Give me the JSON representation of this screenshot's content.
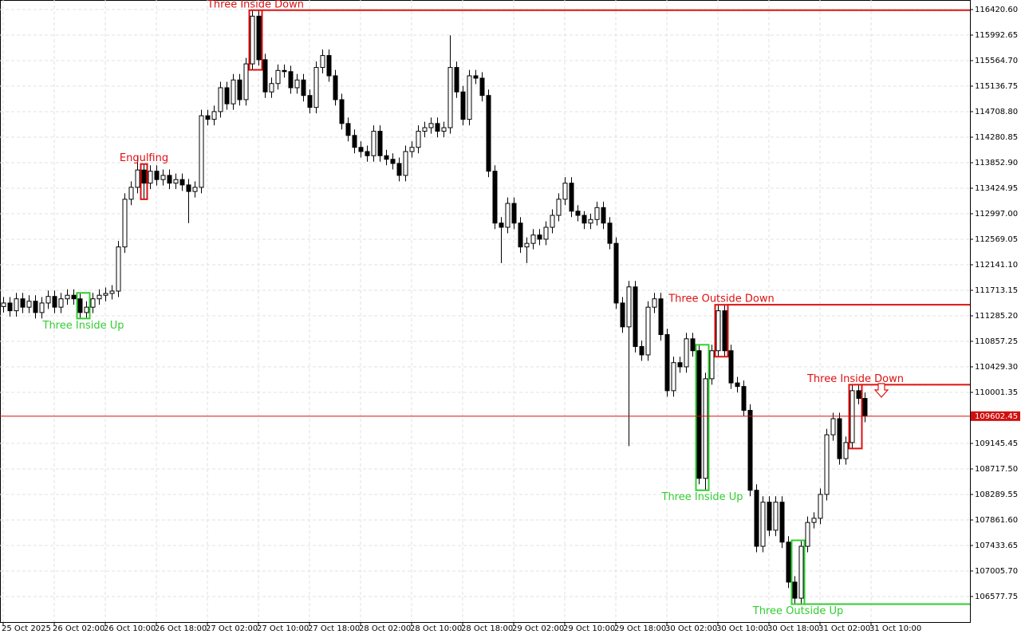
{
  "chart_data": {
    "type": "candlestick",
    "grid": true,
    "up_color": "#ffffff",
    "down_color": "#000000",
    "ylim": [
      106149.8,
      116581.1
    ],
    "xlim": [
      -0.5,
      151.5
    ],
    "yticks": [
      {
        "value": 116420.6,
        "label": "116420.60"
      },
      115992.65,
      {
        "value": 115564.7,
        "label": "115564.70"
      },
      115136.75,
      {
        "value": 114708.8,
        "label": "114708.80"
      },
      114280.85,
      {
        "value": 113852.9,
        "label": "113852.90"
      },
      113424.95,
      {
        "value": 112997.0,
        "label": "112997.00"
      },
      112569.05,
      {
        "value": 112141.1,
        "label": "112141.10"
      },
      111713.15,
      {
        "value": 111285.2,
        "label": "111285.20"
      },
      110857.25,
      {
        "value": 110429.3,
        "label": "110429.30"
      },
      110001.35,
      109145.45,
      {
        "value": 108717.5,
        "label": "108717.50"
      },
      108289.55,
      {
        "value": 107861.6,
        "label": "107861.60"
      },
      107433.65,
      {
        "value": 107005.7,
        "label": "107005.70"
      },
      106577.75
    ],
    "xticks": [
      {
        "value": 0,
        "label": "25 Oct 2025"
      },
      {
        "value": 8,
        "label": "26 Oct 02:00"
      },
      {
        "value": 16,
        "label": "26 Oct 10:00"
      },
      {
        "value": 24,
        "label": "26 Oct 18:00"
      },
      {
        "value": 32,
        "label": "27 Oct 02:00"
      },
      {
        "value": 40,
        "label": "27 Oct 10:00"
      },
      {
        "value": 48,
        "label": "27 Oct 18:00"
      },
      {
        "value": 56,
        "label": "28 Oct 02:00"
      },
      {
        "value": 64,
        "label": "28 Oct 10:00"
      },
      {
        "value": 72,
        "label": "28 Oct 18:00"
      },
      {
        "value": 80,
        "label": "29 Oct 02:00"
      },
      {
        "value": 88,
        "label": "29 Oct 10:00"
      },
      {
        "value": 96,
        "label": "29 Oct 18:00"
      },
      {
        "value": 104,
        "label": "30 Oct 02:00"
      },
      {
        "value": 112,
        "label": "30 Oct 10:00"
      },
      {
        "value": 120,
        "label": "30 Oct 18:00"
      },
      {
        "value": 128,
        "label": "31 Oct 02:00"
      },
      {
        "value": 136,
        "label": "31 Oct 10:00"
      }
    ],
    "current_price": 109602.45,
    "current_price_color": "#d01010",
    "open": [
      111440,
      111500,
      111370,
      111570,
      111430,
      111530,
      111340,
      111500,
      111610,
      111430,
      111570,
      111630,
      111570,
      111340,
      111430,
      111570,
      111630,
      111660,
      111700,
      112440,
      113240,
      113440,
      113730,
      113510,
      113710,
      113570,
      113640,
      113510,
      113570,
      113480,
      113370,
      113440,
      114640,
      114580,
      114710,
      115110,
      114840,
      115240,
      114910,
      115510,
      116310,
      115580,
      115040,
      115180,
      115400,
      115380,
      115110,
      115240,
      114980,
      114780,
      115450,
      115650,
      115310,
      114910,
      114510,
      114310,
      114110,
      114040,
      113970,
      114380,
      113970,
      113910,
      113840,
      113640,
      114040,
      114110,
      114380,
      114440,
      114510,
      114380,
      114440,
      115450,
      115040,
      114580,
      115310,
      115270,
      114980,
      113710,
      112840,
      112770,
      113170,
      112840,
      112440,
      112500,
      112640,
      112570,
      112770,
      112970,
      113240,
      113510,
      113040,
      112970,
      112840,
      112900,
      113100,
      112840,
      112500,
      111500,
      111100,
      111770,
      110770,
      110630,
      111430,
      111570,
      110970,
      110030,
      110500,
      110430,
      110900,
      110700,
      108560,
      110230,
      110700,
      111370,
      110700,
      110160,
      110100,
      109700,
      108360,
      107420,
      108160,
      107690,
      108160,
      107490,
      106820,
      106550,
      107420,
      107820,
      107890,
      108290,
      109290,
      109560,
      108890,
      109160,
      110030,
      109900
    ],
    "high": [
      111600,
      111600,
      111670,
      111670,
      111630,
      111630,
      111600,
      111710,
      111710,
      111670,
      111730,
      111730,
      111670,
      111530,
      111670,
      111730,
      111760,
      111800,
      112540,
      113340,
      113540,
      113970,
      113830,
      113810,
      113810,
      113740,
      113740,
      113670,
      113670,
      113580,
      113540,
      114740,
      114740,
      114810,
      115210,
      115210,
      115340,
      115340,
      115610,
      116410,
      116410,
      115680,
      115280,
      115500,
      115500,
      115480,
      115340,
      115340,
      115080,
      115550,
      115750,
      115750,
      115410,
      115010,
      114610,
      114410,
      114210,
      114140,
      114480,
      114480,
      114070,
      114010,
      113940,
      114140,
      114210,
      114480,
      114540,
      114610,
      114610,
      114540,
      115990,
      115550,
      115140,
      115410,
      115410,
      115370,
      115080,
      113810,
      112940,
      113270,
      113270,
      112940,
      112600,
      112740,
      112740,
      112870,
      113070,
      113340,
      113610,
      113610,
      113140,
      113040,
      113000,
      113200,
      113200,
      112940,
      112600,
      111600,
      111870,
      111870,
      110870,
      111530,
      111670,
      111670,
      111070,
      110600,
      110600,
      111000,
      111000,
      110800,
      110330,
      110800,
      111470,
      111470,
      110800,
      110260,
      110200,
      109800,
      108460,
      108260,
      108260,
      108260,
      108260,
      107590,
      106920,
      107520,
      107920,
      107990,
      108390,
      109390,
      109660,
      109660,
      109260,
      110130,
      110130,
      110000
    ],
    "low": [
      111340,
      111270,
      111270,
      111330,
      111330,
      111240,
      111240,
      111400,
      111330,
      111330,
      111470,
      111470,
      111240,
      111240,
      111330,
      111470,
      111530,
      111560,
      111600,
      112340,
      113140,
      113340,
      113240,
      113410,
      113470,
      113470,
      113410,
      113410,
      113380,
      112840,
      113270,
      113340,
      114480,
      114480,
      114610,
      114740,
      114740,
      114810,
      114810,
      115410,
      115480,
      114940,
      114940,
      115080,
      115280,
      115010,
      115010,
      114880,
      114680,
      114680,
      115350,
      115210,
      114810,
      114410,
      114210,
      114010,
      113940,
      113870,
      113870,
      113870,
      113810,
      113740,
      113540,
      113540,
      113940,
      114010,
      114280,
      114340,
      114280,
      114280,
      114340,
      114940,
      114480,
      114480,
      115170,
      114880,
      113610,
      112740,
      112170,
      112670,
      112740,
      112340,
      112170,
      112400,
      112470,
      112470,
      112670,
      112870,
      113140,
      112940,
      112870,
      112740,
      112740,
      112800,
      112740,
      112400,
      111400,
      111000,
      109100,
      110670,
      110530,
      110530,
      111330,
      110870,
      109930,
      109930,
      110330,
      110330,
      110600,
      108460,
      108360,
      110130,
      110600,
      110600,
      110060,
      110000,
      109600,
      108260,
      107320,
      107320,
      107590,
      107590,
      107390,
      106720,
      106450,
      106450,
      107320,
      107720,
      107790,
      108190,
      109190,
      108790,
      108790,
      109060,
      109800,
      109500
    ],
    "close": [
      111500,
      111370,
      111570,
      111430,
      111530,
      111340,
      111500,
      111610,
      111430,
      111570,
      111630,
      111570,
      111340,
      111430,
      111570,
      111630,
      111660,
      111700,
      112440,
      113240,
      113440,
      113730,
      113510,
      113710,
      113570,
      113640,
      113510,
      113570,
      113480,
      113370,
      113440,
      114640,
      114580,
      114710,
      115110,
      114840,
      115240,
      114910,
      115510,
      116310,
      115580,
      115040,
      115180,
      115400,
      115380,
      115110,
      115240,
      114980,
      114780,
      115450,
      115650,
      115310,
      114910,
      114510,
      114310,
      114110,
      114040,
      113970,
      114380,
      113970,
      113910,
      113840,
      113640,
      114040,
      114110,
      114380,
      114440,
      114510,
      114380,
      114440,
      115450,
      115040,
      114580,
      115310,
      115270,
      114980,
      113710,
      112840,
      112770,
      113170,
      112840,
      112440,
      112500,
      112640,
      112570,
      112770,
      112970,
      113240,
      113510,
      113040,
      112970,
      112840,
      112900,
      113100,
      112840,
      112500,
      111500,
      111100,
      111770,
      110770,
      110630,
      111430,
      111570,
      110970,
      110030,
      110500,
      110430,
      110900,
      110700,
      108560,
      110230,
      110700,
      111370,
      110700,
      110160,
      110100,
      109700,
      108360,
      107420,
      108160,
      107690,
      108160,
      107490,
      106820,
      106550,
      107420,
      107820,
      107890,
      108290,
      109290,
      109560,
      108890,
      109160,
      110030,
      109900,
      109602.45
    ],
    "patterns": [
      {
        "label": "Three Inside Up",
        "color": "#32cd32",
        "from": 12,
        "to": 13,
        "label_side": "below"
      },
      {
        "label": "Engulfing",
        "color": "#dd1111",
        "from": 22,
        "to": 22,
        "label_side": "above"
      },
      {
        "label": "Three Inside Down",
        "color": "#dd1111",
        "from": 39,
        "to": 40,
        "label_side": "above",
        "level": "high"
      },
      {
        "label": "Three Outside Down",
        "color": "#dd1111",
        "from": 112,
        "to": 113,
        "label_side": "above",
        "level": "high"
      },
      {
        "label": "Three Inside Up",
        "color": "#32cd32",
        "from": 109,
        "to": 110,
        "label_side": "below"
      },
      {
        "label": "Three Outside Up",
        "color": "#32cd32",
        "from": 124,
        "to": 125,
        "label_side": "below",
        "level": "low"
      },
      {
        "label": "Three Inside Down",
        "color": "#dd1111",
        "from": 133,
        "to": 134,
        "label_side": "above",
        "level": "high"
      }
    ]
  }
}
